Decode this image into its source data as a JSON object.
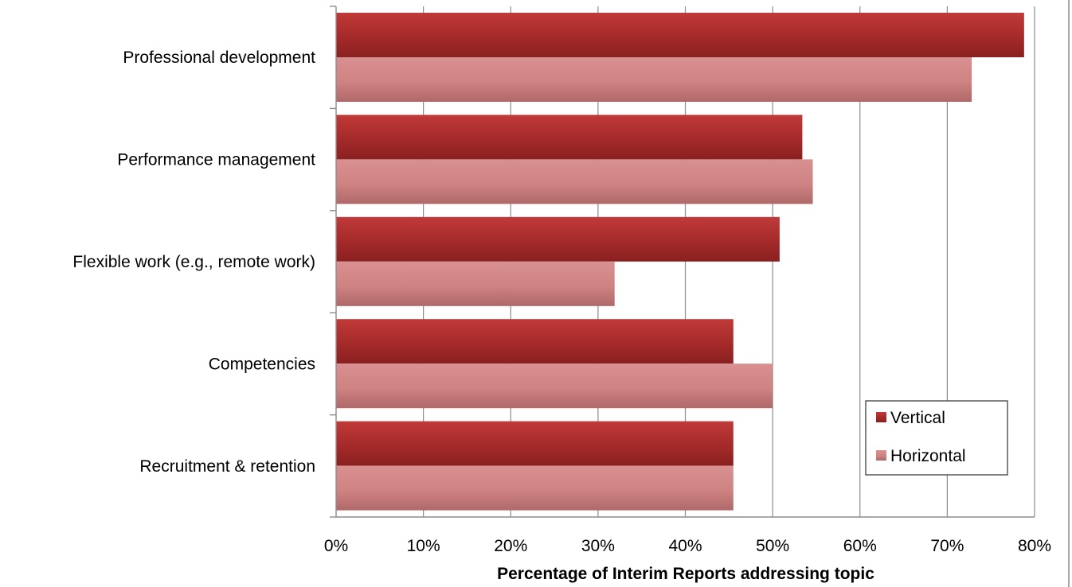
{
  "chart_data": {
    "type": "bar",
    "orientation": "horizontal",
    "categories": [
      "Professional development",
      "Performance management",
      "Flexible work (e.g., remote work)",
      "Competencies",
      "Recruitment & retention"
    ],
    "series": [
      {
        "name": "Vertical",
        "values": [
          78.8,
          53.4,
          50.8,
          45.5,
          45.5
        ],
        "color": "#a52a2a"
      },
      {
        "name": "Horizontal",
        "values": [
          72.8,
          54.6,
          31.9,
          50.0,
          45.5
        ],
        "color": "#d38080"
      }
    ],
    "xlim": [
      0,
      80
    ],
    "xticks": [
      "0%",
      "10%",
      "20%",
      "30%",
      "40%",
      "50%",
      "60%",
      "70%",
      "80%"
    ],
    "xlabel": "Percentage of Interim Reports addressing topic",
    "ylabel": "",
    "grid": "vertical",
    "legend_position": "bottom-right"
  }
}
